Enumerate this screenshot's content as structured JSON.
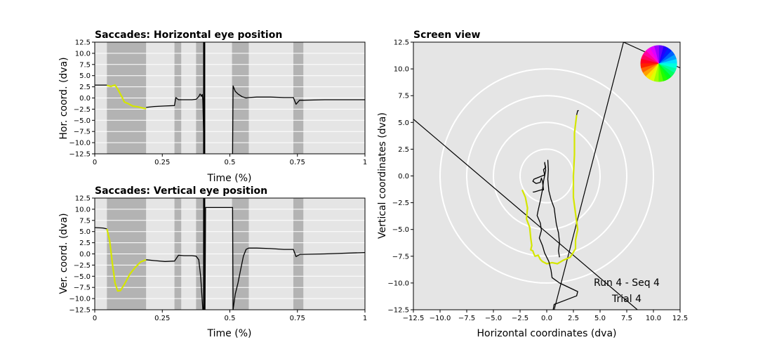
{
  "chart_data": [
    {
      "type": "line",
      "title": "Saccades: Horizontal eye position",
      "xlabel": "Time (%)",
      "ylabel": "Hor. coord. (dva)",
      "xlim": [
        0,
        1
      ],
      "ylim": [
        -12.5,
        12.5
      ],
      "xticks": [
        "0",
        "0.25",
        "0.5",
        "0.75",
        "1"
      ],
      "yticks": [
        "12.5",
        "10.0",
        "7.5",
        "5.0",
        "2.5",
        "0.0",
        "−2.5",
        "−5.0",
        "−7.5",
        "−10.0",
        "−12.5"
      ],
      "grid": true,
      "background": "#e5e5e5",
      "saccade_band_color": "#b3b3b3",
      "saccade_intervals": [
        [
          0.045,
          0.19
        ],
        [
          0.295,
          0.32
        ],
        [
          0.375,
          0.405
        ],
        [
          0.508,
          0.57
        ],
        [
          0.735,
          0.772
        ]
      ],
      "vertical_markers": [
        {
          "x": 0.405,
          "color": "#000000"
        }
      ],
      "series": [
        {
          "color": "#000000",
          "points": [
            [
              0.0,
              2.9
            ],
            [
              0.04,
              2.9
            ],
            [
              0.045,
              2.9
            ]
          ]
        },
        {
          "color": "#d4e600",
          "points": [
            [
              0.045,
              2.8
            ],
            [
              0.06,
              2.6
            ],
            [
              0.075,
              2.9
            ],
            [
              0.085,
              2.0
            ],
            [
              0.1,
              0.3
            ],
            [
              0.11,
              -0.9
            ],
            [
              0.125,
              -1.3
            ],
            [
              0.14,
              -1.8
            ],
            [
              0.16,
              -2.0
            ],
            [
              0.18,
              -2.3
            ],
            [
              0.19,
              -2.4
            ]
          ]
        },
        {
          "color": "#000000",
          "points": [
            [
              0.19,
              -2.1
            ],
            [
              0.22,
              -1.9
            ],
            [
              0.26,
              -1.8
            ],
            [
              0.295,
              -1.7
            ],
            [
              0.3,
              0.1
            ],
            [
              0.31,
              -0.4
            ],
            [
              0.33,
              -0.4
            ],
            [
              0.36,
              -0.4
            ],
            [
              0.375,
              -0.3
            ],
            [
              0.385,
              0.3
            ],
            [
              0.39,
              0.9
            ],
            [
              0.395,
              0.4
            ],
            [
              0.398,
              0.8
            ],
            [
              0.4,
              -0.5
            ],
            [
              0.405,
              -12.5
            ]
          ]
        },
        {
          "color": "#000000",
          "points": [
            [
              0.51,
              -12.5
            ],
            [
              0.512,
              2.7
            ],
            [
              0.52,
              1.5
            ],
            [
              0.53,
              0.9
            ],
            [
              0.545,
              0.3
            ],
            [
              0.56,
              0.0
            ],
            [
              0.57,
              0.1
            ],
            [
              0.6,
              0.2
            ],
            [
              0.65,
              0.2
            ],
            [
              0.7,
              0.1
            ],
            [
              0.735,
              0.1
            ],
            [
              0.745,
              -1.4
            ],
            [
              0.758,
              -0.5
            ],
            [
              0.772,
              -0.5
            ],
            [
              0.85,
              -0.4
            ],
            [
              0.95,
              -0.4
            ],
            [
              1.0,
              -0.4
            ]
          ]
        }
      ]
    },
    {
      "type": "line",
      "title": "Saccades: Vertical eye position",
      "xlabel": "Time (%)",
      "ylabel": "Ver. coord. (dva)",
      "xlim": [
        0,
        1
      ],
      "ylim": [
        -12.5,
        12.5
      ],
      "xticks": [
        "0",
        "0.25",
        "0.5",
        "0.75",
        "1"
      ],
      "yticks": [
        "12.5",
        "10.0",
        "7.5",
        "5.0",
        "2.5",
        "0.0",
        "−2.5",
        "−5.0",
        "−7.5",
        "−10.0",
        "−12.5"
      ],
      "grid": true,
      "background": "#e5e5e5",
      "saccade_band_color": "#b3b3b3",
      "saccade_intervals": [
        [
          0.045,
          0.19
        ],
        [
          0.295,
          0.32
        ],
        [
          0.375,
          0.405
        ],
        [
          0.508,
          0.57
        ],
        [
          0.735,
          0.772
        ]
      ],
      "vertical_markers": [
        {
          "x": 0.405,
          "color": "#000000"
        }
      ],
      "series": [
        {
          "color": "#000000",
          "points": [
            [
              0.0,
              5.9
            ],
            [
              0.03,
              5.8
            ],
            [
              0.045,
              5.6
            ]
          ]
        },
        {
          "color": "#d4e600",
          "points": [
            [
              0.045,
              5.6
            ],
            [
              0.055,
              3.0
            ],
            [
              0.065,
              -2.0
            ],
            [
              0.075,
              -6.5
            ],
            [
              0.085,
              -8.3
            ],
            [
              0.095,
              -8.2
            ],
            [
              0.11,
              -6.8
            ],
            [
              0.13,
              -4.5
            ],
            [
              0.15,
              -3.0
            ],
            [
              0.17,
              -1.8
            ],
            [
              0.19,
              -1.3
            ]
          ]
        },
        {
          "color": "#000000",
          "points": [
            [
              0.19,
              -1.3
            ],
            [
              0.22,
              -1.5
            ],
            [
              0.26,
              -1.7
            ],
            [
              0.295,
              -1.6
            ],
            [
              0.31,
              -0.3
            ],
            [
              0.33,
              -0.4
            ],
            [
              0.36,
              -0.4
            ],
            [
              0.375,
              -0.5
            ],
            [
              0.385,
              -1.3
            ],
            [
              0.392,
              -5.0
            ],
            [
              0.4,
              -12.5
            ]
          ]
        },
        {
          "color": "#000000",
          "points": [
            [
              0.408,
              -12.5
            ],
            [
              0.41,
              10.4
            ],
            [
              0.425,
              10.4
            ],
            [
              0.5,
              10.4
            ],
            [
              0.51,
              10.4
            ],
            [
              0.512,
              -12.5
            ]
          ]
        },
        {
          "color": "#000000",
          "points": [
            [
              0.512,
              -12.5
            ],
            [
              0.52,
              -9.0
            ],
            [
              0.53,
              -6.5
            ],
            [
              0.54,
              -3.5
            ],
            [
              0.55,
              -0.5
            ],
            [
              0.56,
              1.0
            ],
            [
              0.57,
              1.3
            ],
            [
              0.6,
              1.3
            ],
            [
              0.65,
              1.2
            ],
            [
              0.7,
              1.0
            ],
            [
              0.735,
              1.0
            ],
            [
              0.745,
              -0.6
            ],
            [
              0.76,
              -0.1
            ],
            [
              0.772,
              -0.1
            ],
            [
              0.85,
              0.0
            ],
            [
              0.95,
              0.2
            ],
            [
              1.0,
              0.3
            ]
          ]
        }
      ]
    },
    {
      "type": "scatter",
      "title": "Screen view",
      "xlabel": "Horizontal coordinates (dva)",
      "ylabel": "Vertical coordinates (dva)",
      "xlim": [
        -12.5,
        12.5
      ],
      "ylim": [
        -12.5,
        12.5
      ],
      "xticks": [
        "−12.5",
        "−10.0",
        "−7.5",
        "−5.0",
        "−2.5",
        "0.0",
        "2.5",
        "5.0",
        "7.5",
        "10.0",
        "12.5"
      ],
      "yticks": [
        "12.5",
        "10.0",
        "7.5",
        "5.0",
        "2.5",
        "0.0",
        "−2.5",
        "−5.0",
        "−7.5",
        "−10.0",
        "−12.5"
      ],
      "grid": false,
      "background": "#e5e5e5",
      "circle_radii": [
        2.5,
        5.0,
        7.5,
        10.0
      ],
      "circle_color": "#ffffff",
      "straight_lines": [
        {
          "color": "#000000",
          "points": [
            [
              -12.5,
              5.3
            ],
            [
              8.5,
              -12.5
            ]
          ]
        },
        {
          "color": "#000000",
          "points": [
            [
              0.7,
              -12.5
            ],
            [
              7.2,
              12.5
            ],
            [
              12.5,
              10.1
            ]
          ]
        }
      ],
      "series": [
        {
          "color": "#000000",
          "points": [
            [
              -0.2,
              1.2
            ],
            [
              -0.1,
              0.8
            ],
            [
              -0.3,
              0.6
            ],
            [
              -0.2,
              0.1
            ],
            [
              -1.2,
              -0.3
            ],
            [
              -1.3,
              -0.5
            ],
            [
              -1.0,
              -0.7
            ],
            [
              -0.6,
              -0.6
            ],
            [
              -0.5,
              -0.2
            ],
            [
              -0.4,
              -0.5
            ],
            [
              -0.3,
              -1.3
            ],
            [
              -0.5,
              -1.3
            ],
            [
              -1.2,
              -1.5
            ],
            [
              -1.3,
              -1.5
            ]
          ]
        },
        {
          "color": "#d4e600",
          "points": [
            [
              -2.3,
              -1.3
            ],
            [
              -2.0,
              -2.0
            ],
            [
              -1.8,
              -3.0
            ],
            [
              -1.9,
              -4.0
            ],
            [
              -1.6,
              -4.8
            ],
            [
              -1.5,
              -5.8
            ],
            [
              -1.4,
              -6.5
            ],
            [
              -1.5,
              -6.9
            ],
            [
              -1.3,
              -7.0
            ],
            [
              -1.2,
              -7.3
            ],
            [
              -1.1,
              -7.5
            ],
            [
              -0.8,
              -7.4
            ],
            [
              -0.6,
              -7.8
            ],
            [
              -0.4,
              -8.0
            ],
            [
              0.0,
              -8.2
            ],
            [
              0.5,
              -8.1
            ],
            [
              1.0,
              -8.2
            ],
            [
              1.5,
              -7.9
            ],
            [
              2.2,
              -7.6
            ],
            [
              2.7,
              -6.8
            ],
            [
              2.7,
              -6.0
            ],
            [
              2.9,
              -5.0
            ],
            [
              2.7,
              -3.5
            ],
            [
              2.5,
              -2.0
            ],
            [
              2.5,
              0.0
            ],
            [
              2.6,
              2.0
            ],
            [
              2.6,
              4.0
            ],
            [
              2.8,
              5.7
            ]
          ]
        },
        {
          "color": "#000000",
          "points": [
            [
              2.8,
              5.7
            ],
            [
              2.9,
              6.1
            ],
            [
              3.0,
              6.1
            ]
          ]
        },
        {
          "color": "#000000",
          "points": [
            [
              -0.2,
              1.3
            ],
            [
              -0.1,
              0.5
            ],
            [
              -0.3,
              -0.5
            ],
            [
              -0.4,
              -1.3
            ],
            [
              -0.6,
              -2.3
            ],
            [
              -0.8,
              -3.2
            ],
            [
              -0.9,
              -3.7
            ],
            [
              -0.6,
              -4.4
            ],
            [
              -0.5,
              -5.1
            ],
            [
              -0.7,
              -5.8
            ],
            [
              -0.4,
              -6.5
            ],
            [
              -0.2,
              -7.2
            ],
            [
              0.2,
              -8.0
            ],
            [
              0.4,
              -8.8
            ],
            [
              0.5,
              -9.5
            ],
            [
              1.2,
              -10.0
            ],
            [
              2.9,
              -10.8
            ],
            [
              2.8,
              -11.2
            ],
            [
              1.5,
              -11.7
            ],
            [
              0.7,
              -12.0
            ],
            [
              0.6,
              -12.5
            ]
          ]
        },
        {
          "color": "#000000",
          "points": [
            [
              0.1,
              1.5
            ],
            [
              0.15,
              0.6
            ],
            [
              0.1,
              -0.3
            ],
            [
              0.2,
              -1.4
            ],
            [
              0.4,
              -2.2
            ],
            [
              0.7,
              -3.0
            ],
            [
              0.8,
              -3.8
            ],
            [
              0.9,
              -4.5
            ],
            [
              1.1,
              -5.3
            ],
            [
              1.2,
              -6.2
            ],
            [
              1.1,
              -7.0
            ],
            [
              1.2,
              -7.6
            ]
          ]
        }
      ],
      "annotations": [
        "Run 4 - Seq 4",
        "Trial 4"
      ],
      "color_wheel": {
        "center": [
          10.5,
          10.5
        ],
        "radius": 1.7,
        "segments": 24
      }
    }
  ]
}
